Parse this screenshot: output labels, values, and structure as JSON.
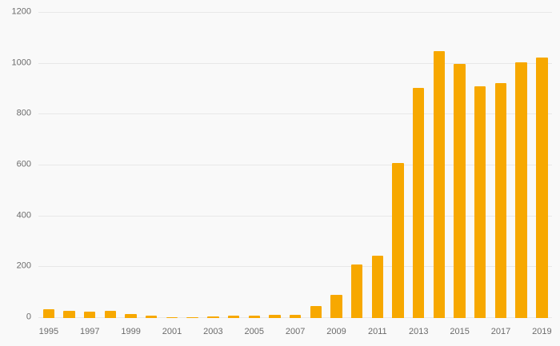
{
  "chart_data": {
    "type": "bar",
    "title": "",
    "xlabel": "",
    "ylabel": "",
    "categories": [
      "1995",
      "1996",
      "1997",
      "1998",
      "1999",
      "2000",
      "2001",
      "2002",
      "2003",
      "2004",
      "2005",
      "2006",
      "2007",
      "2008",
      "2009",
      "2010",
      "2011",
      "2012",
      "2013",
      "2014",
      "2015",
      "2016",
      "2017",
      "2018",
      "2019"
    ],
    "values": [
      35,
      28,
      25,
      28,
      15,
      10,
      2,
      2,
      6,
      8,
      8,
      14,
      12,
      48,
      90,
      210,
      245,
      610,
      905,
      1050,
      1000,
      910,
      925,
      1005,
      1025
    ],
    "x_tick_labels": [
      "1995",
      "1997",
      "1999",
      "2001",
      "2003",
      "2005",
      "2007",
      "2009",
      "2011",
      "2013",
      "2015",
      "2017",
      "2019"
    ],
    "ylim": [
      0,
      1200
    ],
    "ytick_step": 200,
    "y_tick_labels": [
      "0",
      "200",
      "400",
      "600",
      "800",
      "1000",
      "1200"
    ],
    "grid": true,
    "legend": "none",
    "bar_color": "#f7a800",
    "background_color": "#f9f9f9",
    "axis_text_color": "#6b6b6b",
    "gridline_color": "#e8e8e8"
  }
}
